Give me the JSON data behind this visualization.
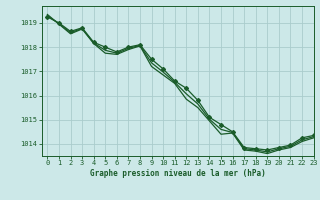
{
  "title": "Graphe pression niveau de la mer (hPa)",
  "bg_color": "#cce8e8",
  "grid_color": "#aacccc",
  "line_color": "#1a5c2a",
  "xlim": [
    -0.5,
    23
  ],
  "ylim": [
    1013.5,
    1019.7
  ],
  "yticks": [
    1014,
    1015,
    1016,
    1017,
    1018,
    1019
  ],
  "xticks": [
    0,
    1,
    2,
    3,
    4,
    5,
    6,
    7,
    8,
    9,
    10,
    11,
    12,
    13,
    14,
    15,
    16,
    17,
    18,
    19,
    20,
    21,
    22,
    23
  ],
  "series1": [
    1019.25,
    1019.0,
    1018.65,
    1018.8,
    1018.2,
    1018.0,
    1017.8,
    1018.0,
    1018.1,
    1017.5,
    1017.1,
    1016.6,
    1016.3,
    1015.8,
    1015.1,
    1014.8,
    1014.5,
    1013.85,
    1013.8,
    1013.75,
    1013.85,
    1013.95,
    1014.25,
    1014.35
  ],
  "series2": [
    1019.35,
    1018.95,
    1018.55,
    1018.75,
    1018.15,
    1017.75,
    1017.7,
    1017.9,
    1018.05,
    1017.2,
    1016.85,
    1016.5,
    1015.85,
    1015.5,
    1014.95,
    1014.4,
    1014.45,
    1013.75,
    1013.7,
    1013.6,
    1013.75,
    1013.85,
    1014.1,
    1014.25
  ],
  "series3": [
    1019.3,
    1018.97,
    1018.6,
    1018.77,
    1018.17,
    1017.87,
    1017.75,
    1017.95,
    1018.07,
    1017.35,
    1016.97,
    1016.55,
    1016.07,
    1015.65,
    1015.02,
    1014.6,
    1014.47,
    1013.8,
    1013.75,
    1013.67,
    1013.8,
    1013.9,
    1014.17,
    1014.3
  ],
  "markers_x": [
    0,
    1,
    2,
    3,
    4,
    5,
    6,
    7,
    8,
    9,
    10,
    11,
    12,
    13,
    14,
    15,
    16,
    17,
    18,
    19,
    20,
    21,
    22,
    23
  ],
  "markers_y": [
    1019.25,
    1019.0,
    1018.65,
    1018.8,
    1018.2,
    1018.0,
    1017.8,
    1018.0,
    1018.1,
    1017.5,
    1017.1,
    1016.6,
    1016.3,
    1015.8,
    1015.1,
    1014.8,
    1014.5,
    1013.85,
    1013.8,
    1013.75,
    1013.85,
    1013.95,
    1014.25,
    1014.35
  ]
}
